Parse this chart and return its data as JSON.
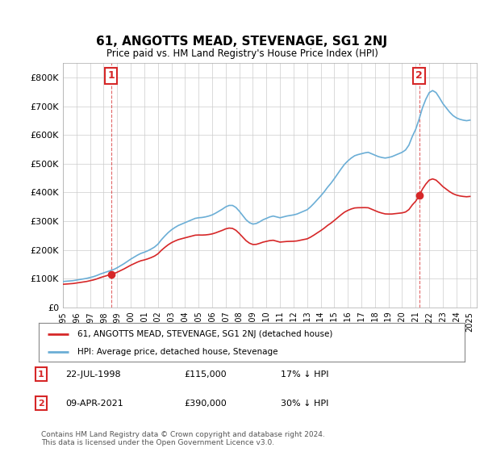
{
  "title": "61, ANGOTTS MEAD, STEVENAGE, SG1 2NJ",
  "subtitle": "Price paid vs. HM Land Registry's House Price Index (HPI)",
  "ylim": [
    0,
    850000
  ],
  "yticks": [
    0,
    100000,
    200000,
    300000,
    400000,
    500000,
    600000,
    700000,
    800000
  ],
  "ytick_labels": [
    "£0",
    "£100K",
    "£200K",
    "£300K",
    "£400K",
    "£500K",
    "£600K",
    "£700K",
    "£800K"
  ],
  "sale1_date_x": 1998.55,
  "sale1_price": 115000,
  "sale1_label": "1",
  "sale1_text": "22-JUL-1998",
  "sale1_price_text": "£115,000",
  "sale1_hpi_text": "17% ↓ HPI",
  "sale2_date_x": 2021.27,
  "sale2_price": 390000,
  "sale2_label": "2",
  "sale2_text": "09-APR-2021",
  "sale2_price_text": "£390,000",
  "sale2_hpi_text": "30% ↓ HPI",
  "legend_line1": "61, ANGOTTS MEAD, STEVENAGE, SG1 2NJ (detached house)",
  "legend_line2": "HPI: Average price, detached house, Stevenage",
  "footnote": "Contains HM Land Registry data © Crown copyright and database right 2024.\nThis data is licensed under the Open Government Licence v3.0.",
  "hpi_color": "#6baed6",
  "sale_color": "#d62728",
  "grid_color": "#cccccc",
  "vline_color": "#d62728",
  "background_color": "#ffffff",
  "xlim_left": 1995.0,
  "xlim_right": 2025.5
}
